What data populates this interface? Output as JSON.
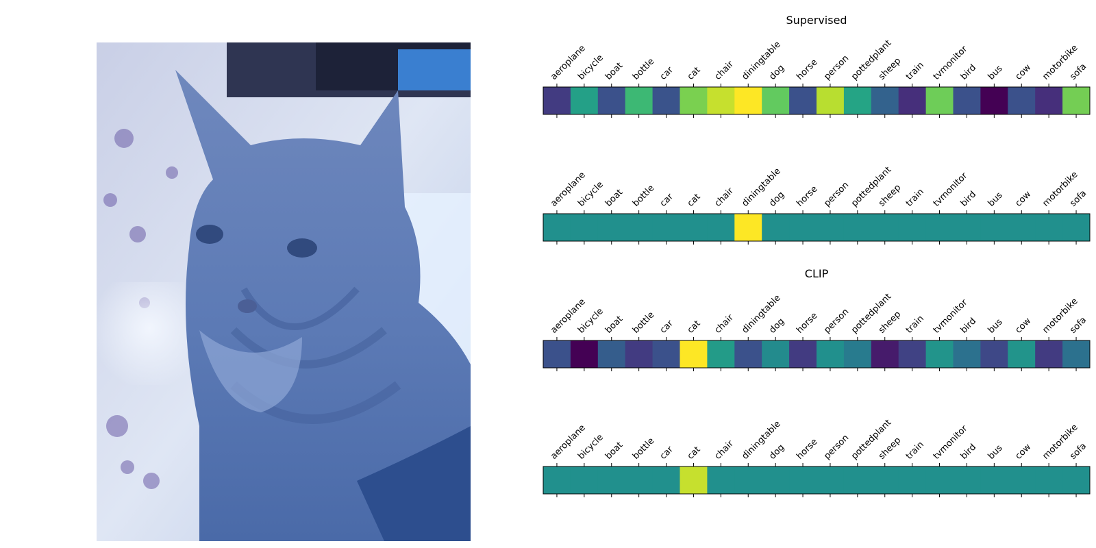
{
  "chart_data": [
    {
      "type": "heatmap",
      "title": "Supervised",
      "colormap": "viridis",
      "categories": [
        "aeroplane",
        "bicycle",
        "boat",
        "bottle",
        "car",
        "cat",
        "chair",
        "diningtable",
        "dog",
        "horse",
        "person",
        "pottedplant",
        "sheep",
        "train",
        "tvmonitor",
        "bird",
        "bus",
        "cow",
        "motorbike",
        "sofa"
      ],
      "values": [
        0.18,
        0.57,
        0.25,
        0.68,
        0.26,
        0.8,
        0.92,
        1.0,
        0.76,
        0.25,
        0.9,
        0.59,
        0.32,
        0.14,
        0.78,
        0.25,
        0.0,
        0.25,
        0.14,
        0.79
      ]
    },
    {
      "type": "heatmap",
      "title": "",
      "colormap": "viridis",
      "categories": [
        "aeroplane",
        "bicycle",
        "boat",
        "bottle",
        "car",
        "cat",
        "chair",
        "diningtable",
        "dog",
        "horse",
        "person",
        "pottedplant",
        "sheep",
        "train",
        "tvmonitor",
        "bird",
        "bus",
        "cow",
        "motorbike",
        "sofa"
      ],
      "values": [
        0.5,
        0.5,
        0.5,
        0.5,
        0.5,
        0.5,
        0.5,
        1.0,
        0.5,
        0.5,
        0.5,
        0.5,
        0.5,
        0.5,
        0.5,
        0.5,
        0.5,
        0.5,
        0.5,
        0.5
      ]
    },
    {
      "type": "heatmap",
      "title": "CLIP",
      "colormap": "viridis",
      "categories": [
        "aeroplane",
        "bicycle",
        "boat",
        "bottle",
        "car",
        "cat",
        "chair",
        "diningtable",
        "dog",
        "horse",
        "person",
        "pottedplant",
        "sheep",
        "train",
        "tvmonitor",
        "bird",
        "bus",
        "cow",
        "motorbike",
        "sofa"
      ],
      "values": [
        0.25,
        0.0,
        0.3,
        0.18,
        0.25,
        1.0,
        0.55,
        0.25,
        0.48,
        0.18,
        0.5,
        0.42,
        0.08,
        0.2,
        0.52,
        0.38,
        0.22,
        0.52,
        0.18,
        0.38
      ]
    },
    {
      "type": "heatmap",
      "title": "",
      "colormap": "viridis",
      "categories": [
        "aeroplane",
        "bicycle",
        "boat",
        "bottle",
        "car",
        "cat",
        "chair",
        "diningtable",
        "dog",
        "horse",
        "person",
        "pottedplant",
        "sheep",
        "train",
        "tvmonitor",
        "bird",
        "bus",
        "cow",
        "motorbike",
        "sofa"
      ],
      "values": [
        0.5,
        0.5,
        0.5,
        0.5,
        0.5,
        0.92,
        0.5,
        0.5,
        0.5,
        0.5,
        0.5,
        0.5,
        0.5,
        0.5,
        0.5,
        0.5,
        0.5,
        0.5,
        0.5,
        0.5
      ]
    }
  ]
}
